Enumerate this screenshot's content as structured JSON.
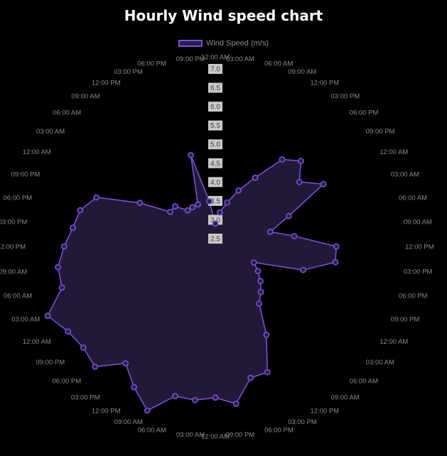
{
  "title": "Hourly Wind speed chart",
  "legend": {
    "label": "Wind Speed (m/s)"
  },
  "colors": {
    "line": "#7b4fd6",
    "fill": "#241a3c",
    "point_fill": "#2a1c4c",
    "background": "#000000"
  },
  "chart_data": {
    "type": "radar",
    "title": "Hourly Wind speed chart",
    "series": [
      {
        "name": "Wind Speed (m/s)",
        "values": [
          2.9,
          3.2,
          3.5,
          3.9,
          4.4,
          5.2,
          5.5,
          5.1,
          5.6,
          4.4,
          3.8,
          4.4,
          5.5,
          5.5,
          4.7,
          3.4,
          3.6,
          3.8,
          4.0,
          4.2,
          5.0,
          5.9,
          5.9,
          6.5,
          6.3,
          6.4,
          6.4,
          7.0,
          6.6,
          6.2,
          6.8,
          6.7,
          6.8,
          7.1,
          6.5,
          6.5,
          6.3,
          6.1,
          6.0,
          5.7,
          4.6,
          3.8,
          3.8,
          3.5,
          3.5,
          3.5,
          4.8,
          3.5
        ]
      }
    ],
    "r_ticks": [
      "7.0",
      "6.5",
      "6.0",
      "5.5",
      "5.0",
      "4.5",
      "4.0",
      "3.5",
      "3.0",
      "2.5"
    ],
    "r_range": [
      2.5,
      7.0
    ],
    "angle_labels": [
      "12:00 AM",
      "03:00 AM",
      "06:00 AM",
      "09:00 AM",
      "12:00 PM",
      "03:00 PM",
      "06:00 PM",
      "09:00 PM",
      "12:00 AM",
      "03:00 AM",
      "06:00 AM",
      "09:00 AM",
      "12:00 PM",
      "03:00 PM",
      "06:00 PM",
      "09:00 PM",
      "12:00 AM",
      "03:00 AM",
      "06:00 AM",
      "09:00 AM",
      "12:00 PM",
      "03:00 PM",
      "06:00 PM",
      "09:00 PM",
      "12:00 AM",
      "03:00 AM",
      "06:00 AM",
      "09:00 AM",
      "12:00 PM",
      "03:00 PM",
      "06:00 PM",
      "09:00 PM",
      "12:00 AM",
      "03:00 AM",
      "06:00 AM",
      "09:00 AM",
      "12:00 PM",
      "03:00 PM",
      "06:00 PM",
      "09:00 PM",
      "12:00 AM",
      "03:00 AM",
      "06:00 AM",
      "09:00 AM",
      "12:00 PM",
      "03:00 PM",
      "06:00 PM",
      "09:00 PM"
    ],
    "grid": false,
    "legend_position": "top"
  }
}
